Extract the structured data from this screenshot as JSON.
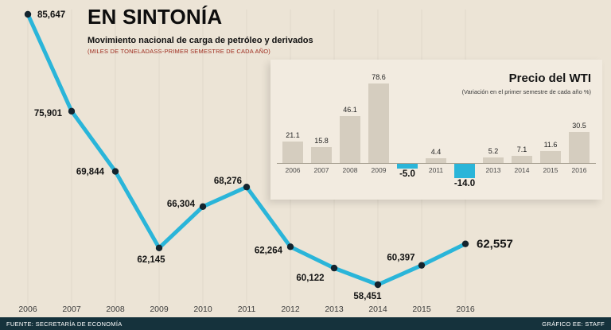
{
  "header": {
    "title": "EN SINTONÍA",
    "subtitle": "Movimiento nacional de carga de petróleo y derivados",
    "note": "(MILES DE TONELADASS-PRIMER SEMESTRE DE CADA AÑO)"
  },
  "footer": {
    "source": "FUENTE: SECRETARÍA DE ECONOMÍA",
    "credit": "GRÁFICO EE: STAFF"
  },
  "colors": {
    "background": "#ece4d6",
    "line": "#2ab5d9",
    "marker": "#14242e",
    "bar_positive": "#d5cdbf",
    "bar_negative": "#2ab5d9",
    "footer_bg": "#15323c",
    "note_red": "#9e2b1e"
  },
  "chart_data": [
    {
      "type": "line",
      "title": "EN SINTONÍA",
      "subtitle": "Movimiento nacional de carga de petróleo y derivados (miles de toneladas, primer semestre de cada año)",
      "x": [
        2006,
        2007,
        2008,
        2009,
        2010,
        2011,
        2012,
        2013,
        2014,
        2015,
        2016
      ],
      "values": [
        85647,
        75901,
        69844,
        62145,
        66304,
        68276,
        62264,
        60122,
        58451,
        60397,
        62557
      ],
      "labels": [
        "85,647",
        "75,901",
        "69,844",
        "62,145",
        "66,304",
        "68,276",
        "62,264",
        "60,122",
        "58,451",
        "60,397",
        "62,557"
      ],
      "ylim": [
        58451,
        85647
      ],
      "grid": "faint-vertical",
      "legend": "none"
    },
    {
      "type": "bar",
      "title": "Precio del WTI",
      "subtitle": "(Variación en el primer semestre de cada año %)",
      "categories": [
        2006,
        2007,
        2008,
        2009,
        2010,
        2011,
        2012,
        2013,
        2014,
        2015,
        2016
      ],
      "values": [
        21.1,
        15.8,
        46.1,
        78.6,
        -5.0,
        4.4,
        -14.0,
        5.2,
        7.1,
        11.6,
        30.5
      ],
      "labels": [
        "21.1",
        "15.8",
        "46.1",
        "78.6",
        "-5.0",
        "4.4",
        "-14.0",
        "5.2",
        "7.1",
        "11.6",
        "30.5"
      ],
      "ylim": [
        -14,
        78.6
      ],
      "legend": "none"
    }
  ]
}
